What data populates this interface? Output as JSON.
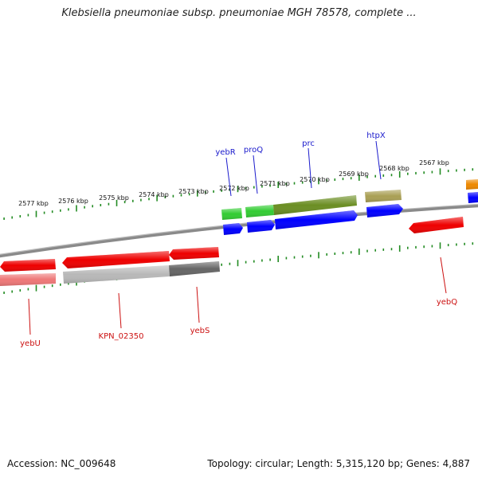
{
  "title": "Klebsiella pneumoniae subsp. pneumoniae MGH 78578, complete ...",
  "footer": {
    "accession": "Accession: NC_009648",
    "summary": "Topology: circular; Length: 5,315,120 bp; Genes: 4,887"
  },
  "colors": {
    "tick": "#228B22",
    "backbone": "#7a7a7a",
    "forward_label": "#1a1acc",
    "reverse_label": "#cc1111"
  },
  "scale_labels": [
    "2577 kbp",
    "2576 kbp",
    "2575 kbp",
    "2574 kbp",
    "2573 kbp",
    "2572 kbp",
    "2571 kbp",
    "2570 kbp",
    "2569 kbp",
    "2568 kbp",
    "2567 kbp"
  ],
  "gene_labels": {
    "forward": [
      "yebR",
      "proQ",
      "prc",
      "htpX"
    ],
    "reverse": [
      "yebU",
      "KPN_02350",
      "yebS",
      "yebQ"
    ]
  },
  "features": [
    {
      "track": "forward-cog",
      "color": "#33cc33"
    },
    {
      "track": "forward-cog",
      "color": "#33cc33"
    },
    {
      "track": "forward-cog",
      "color": "#6b8e23"
    },
    {
      "track": "forward-cog",
      "color": "#aaa055"
    },
    {
      "track": "forward-cog",
      "color": "#ee8800"
    },
    {
      "track": "forward-cds",
      "color": "#0000ff"
    },
    {
      "track": "forward-cds",
      "color": "#0000ff"
    },
    {
      "track": "forward-cds",
      "color": "#0000ff"
    },
    {
      "track": "forward-cds",
      "color": "#0000ff"
    },
    {
      "track": "forward-cds",
      "color": "#0000ff"
    },
    {
      "track": "reverse-cds",
      "color": "#ee0000"
    },
    {
      "track": "reverse-cds",
      "color": "#ee0000"
    },
    {
      "track": "reverse-cds",
      "color": "#ee0000"
    },
    {
      "track": "reverse-cds",
      "color": "#ee0000"
    },
    {
      "track": "reverse-cog",
      "color": "#ee7777"
    },
    {
      "track": "reverse-cog",
      "color": "#b8b8b8"
    },
    {
      "track": "reverse-cog",
      "color": "#666666"
    }
  ]
}
